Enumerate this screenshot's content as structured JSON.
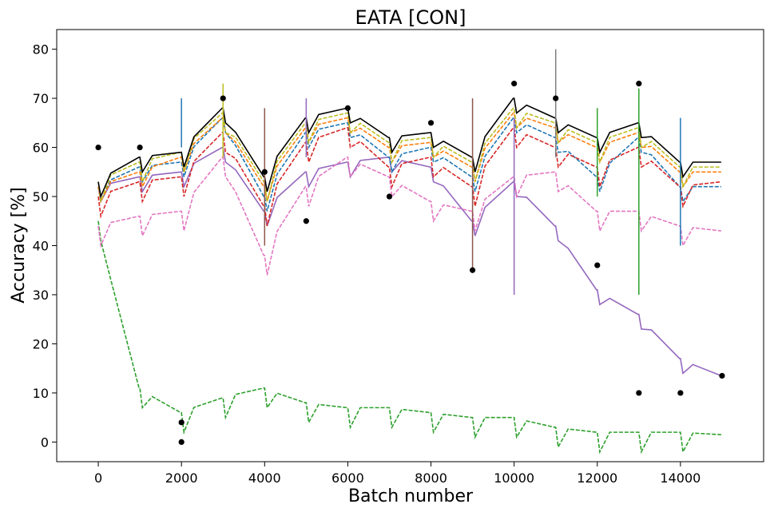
{
  "chart_data": {
    "type": "line",
    "title": "EATA [CON]",
    "xlabel": "Batch number",
    "ylabel": "Accuracy [%]",
    "xlim": [
      -1000,
      16000
    ],
    "ylim": [
      -4,
      84
    ],
    "xticks": [
      0,
      2000,
      4000,
      6000,
      8000,
      10000,
      12000,
      14000
    ],
    "yticks": [
      0,
      10,
      20,
      30,
      40,
      50,
      60,
      70,
      80
    ],
    "x": [
      0,
      1000,
      2000,
      3000,
      4000,
      5000,
      6000,
      7000,
      8000,
      9000,
      10000,
      11000,
      12000,
      13000,
      14000,
      15000
    ],
    "series": [
      {
        "name": "series-green-low",
        "color": "#2ca02c",
        "dashed": true,
        "values": [
          45,
          11,
          6,
          9,
          11,
          8,
          7,
          7,
          6,
          5,
          5,
          3,
          2,
          2,
          2,
          1.5
        ]
      },
      {
        "name": "series-purple-drift",
        "color": "#9467bd",
        "dashed": false,
        "values": [
          52,
          54,
          55,
          60,
          47,
          55,
          57,
          58,
          56,
          45,
          53,
          44,
          31,
          26,
          17,
          13.5
        ]
      },
      {
        "name": "series-pink",
        "color": "#e377c2",
        "dashed": true,
        "values": [
          44,
          46,
          47,
          58,
          38,
          52,
          58,
          54,
          49,
          47,
          54,
          55,
          47,
          47,
          44,
          43
        ]
      },
      {
        "name": "series-blue",
        "color": "#1f77b4",
        "dashed": true,
        "values": [
          52,
          56,
          57,
          66,
          50,
          63,
          65,
          58,
          60,
          54,
          66,
          62,
          54,
          62,
          52,
          52
        ]
      },
      {
        "name": "series-red",
        "color": "#d62728",
        "dashed": true,
        "values": [
          50,
          53,
          54,
          63,
          48,
          61,
          64,
          56,
          58,
          52,
          64,
          60,
          56,
          60,
          52,
          53
        ]
      },
      {
        "name": "series-orange",
        "color": "#ff7f0e",
        "dashed": true,
        "values": [
          52,
          55,
          58,
          66,
          52,
          64,
          66,
          60,
          61,
          56,
          67,
          64,
          60,
          63,
          55,
          55
        ]
      },
      {
        "name": "series-olive",
        "color": "#bcbd22",
        "dashed": true,
        "values": [
          53,
          57,
          59,
          67,
          53,
          65,
          67,
          61,
          62,
          57,
          68,
          65,
          61,
          64,
          56,
          56
        ]
      },
      {
        "name": "series-black-mark",
        "color": "#000000",
        "dashed": false,
        "values": [
          53,
          58,
          59,
          68,
          54,
          66,
          68,
          62,
          63,
          58,
          70,
          66,
          62,
          65,
          57,
          57
        ]
      }
    ],
    "markers": [
      {
        "x": 0,
        "y": 60
      },
      {
        "x": 1000,
        "y": 60
      },
      {
        "x": 2000,
        "y": 0
      },
      {
        "x": 2000,
        "y": 4
      },
      {
        "x": 3000,
        "y": 70
      },
      {
        "x": 4000,
        "y": 55
      },
      {
        "x": 5000,
        "y": 45
      },
      {
        "x": 6000,
        "y": 68
      },
      {
        "x": 7000,
        "y": 50
      },
      {
        "x": 8000,
        "y": 65
      },
      {
        "x": 9000,
        "y": 35
      },
      {
        "x": 10000,
        "y": 73
      },
      {
        "x": 11000,
        "y": 70
      },
      {
        "x": 12000,
        "y": 36
      },
      {
        "x": 13000,
        "y": 10
      },
      {
        "x": 13000,
        "y": 73
      },
      {
        "x": 14000,
        "y": 10
      },
      {
        "x": 15000,
        "y": 13.5
      }
    ],
    "spikes": [
      {
        "x": 2000,
        "y0": 60,
        "y1": 70,
        "color": "#1f77b4"
      },
      {
        "x": 3000,
        "y0": 58,
        "y1": 73,
        "color": "#bcbd22"
      },
      {
        "x": 4000,
        "y0": 40,
        "y1": 68,
        "color": "#8c564b"
      },
      {
        "x": 5000,
        "y0": 58,
        "y1": 70,
        "color": "#9467bd"
      },
      {
        "x": 9000,
        "y0": 35,
        "y1": 70,
        "color": "#8c564b"
      },
      {
        "x": 10000,
        "y0": 30,
        "y1": 66,
        "color": "#9467bd"
      },
      {
        "x": 11000,
        "y0": 58,
        "y1": 80,
        "color": "#7f7f7f"
      },
      {
        "x": 12000,
        "y0": 50,
        "y1": 68,
        "color": "#2ca02c"
      },
      {
        "x": 13000,
        "y0": 30,
        "y1": 72,
        "color": "#2ca02c"
      },
      {
        "x": 14000,
        "y0": 40,
        "y1": 66,
        "color": "#1f77b4"
      }
    ],
    "legend": "none",
    "grid": false
  }
}
